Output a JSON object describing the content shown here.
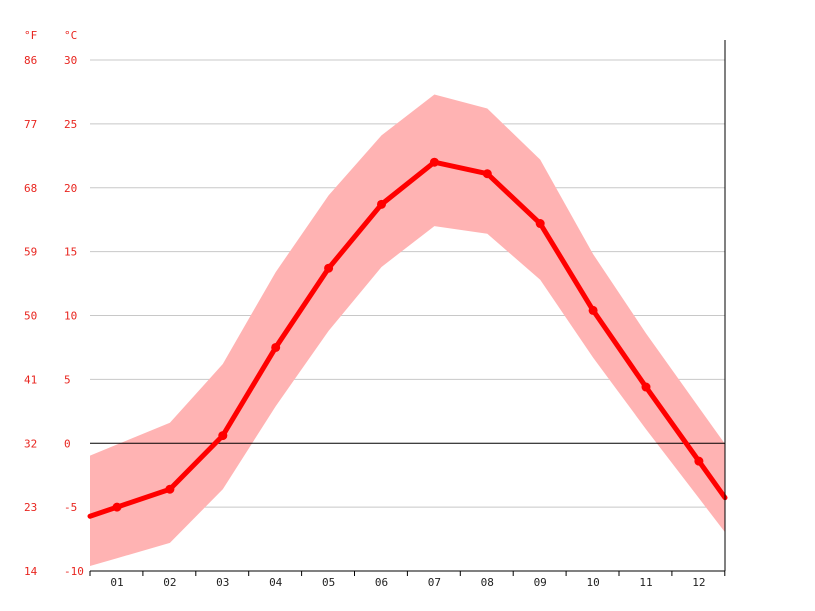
{
  "chart_data": {
    "type": "line",
    "title": "",
    "xlabel": "",
    "ylabel": "",
    "units": {
      "fahrenheit": "°F",
      "celsius": "°C"
    },
    "categories": [
      "01",
      "02",
      "03",
      "04",
      "05",
      "06",
      "07",
      "08",
      "09",
      "10",
      "11",
      "12"
    ],
    "ylim": [
      -10,
      30
    ],
    "yticks_c": [
      -10,
      -5,
      0,
      5,
      10,
      15,
      20,
      25,
      30
    ],
    "yticks_f": [
      14,
      23,
      32,
      41,
      50,
      59,
      68,
      77,
      86
    ],
    "grid": true,
    "legend": "none",
    "series": [
      {
        "values": [
          -5.0,
          -3.6,
          0.6,
          7.5,
          13.7,
          18.7,
          22.0,
          21.1,
          17.2,
          10.4,
          4.4,
          -1.4
        ]
      }
    ],
    "band": {
      "upper": [
        -0.1,
        1.6,
        6.2,
        13.4,
        19.4,
        24.1,
        27.3,
        26.2,
        22.2,
        14.8,
        8.6,
        2.8
      ],
      "lower": [
        -9.0,
        -7.8,
        -3.6,
        2.9,
        8.8,
        13.8,
        17.0,
        16.4,
        12.8,
        6.7,
        1.1,
        -4.3
      ]
    },
    "colors": {
      "line": "#ff0000",
      "band": "#ffb3b3",
      "label": "#e8251f",
      "grid": "#c8c8c8",
      "zero": "#000000",
      "axis": "#000000"
    }
  }
}
